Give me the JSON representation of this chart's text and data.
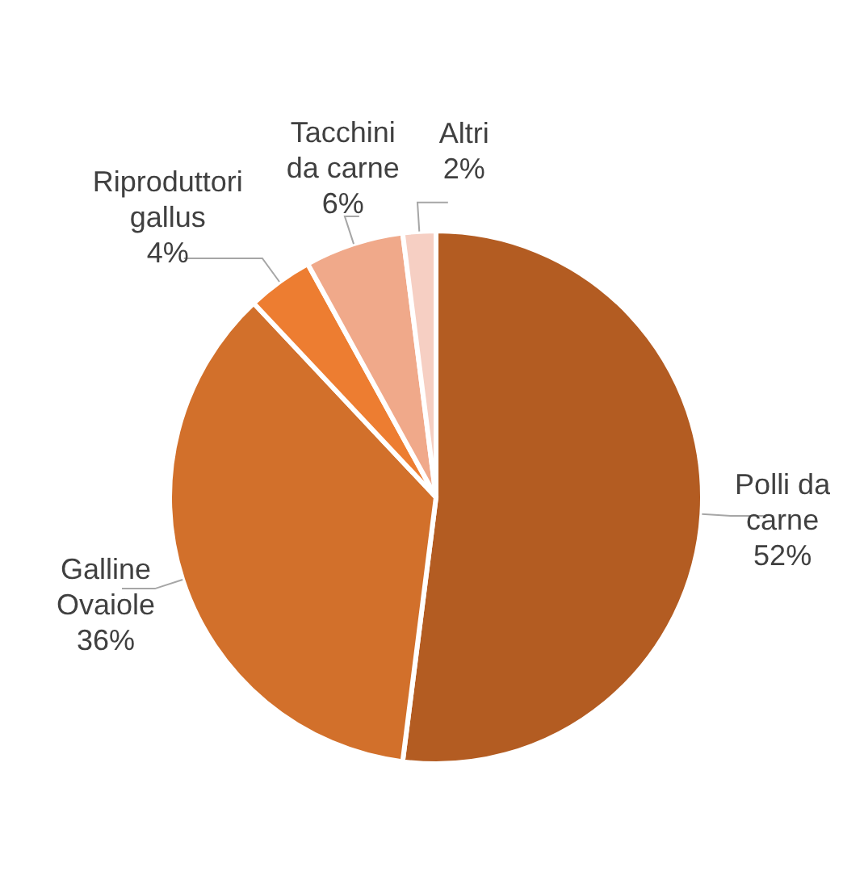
{
  "chart_data": {
    "type": "pie",
    "categories": [
      "Polli da carne",
      "Galline Ovaiole",
      "Riproduttori gallus",
      "Tacchini da carne",
      "Altri"
    ],
    "values": [
      52,
      36,
      4,
      6,
      2
    ],
    "colors": [
      "#b35c22",
      "#d2702b",
      "#ed7d31",
      "#f0a98a",
      "#f6cfc3"
    ],
    "value_labels": [
      "52%",
      "36%",
      "4%",
      "6%",
      "2%"
    ]
  }
}
